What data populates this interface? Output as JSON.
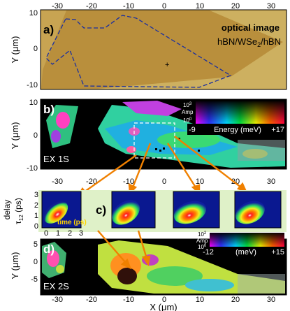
{
  "panel_a": {
    "letter": "a)",
    "title": "optical image",
    "material_prefix": "hBN/WSe",
    "material_sub": "2",
    "material_suffix": "/hBN",
    "x_ticks": [
      "-30",
      "-20",
      "-10",
      "0",
      "10",
      "20",
      "30"
    ],
    "y_ticks": [
      "10",
      "0",
      "-10"
    ],
    "y_label": "Y (μm)",
    "colors": {
      "flake": "#b98f3c",
      "substrate": "#cfb15a",
      "outline": "#1a2fa0"
    }
  },
  "panel_b": {
    "letter": "b)",
    "label": "EX 1S",
    "y_ticks": [
      "10",
      "0",
      "-10"
    ],
    "y_label": "Y (μm)",
    "amp_label": "Amp",
    "amp_high": "10",
    "amp_high_exp": "3",
    "amp_low": "10",
    "amp_low_exp": "0",
    "energy_min": "-9",
    "energy_max": "+17",
    "energy_label": "Energy (meV)"
  },
  "panel_c": {
    "letter": "c)",
    "y_label_1": "delay",
    "y_label_2": "τ",
    "y_label_sub": "12",
    "y_label_3": " (ps)",
    "x_label": "time (ps)",
    "x_ticks": [
      "0",
      "1",
      "2",
      "3"
    ],
    "y_ticks": [
      "3",
      "2",
      "1",
      "0"
    ]
  },
  "panel_d": {
    "letter": "d)",
    "label": "EX 2S",
    "y_ticks": [
      "5",
      "0",
      "-5"
    ],
    "y_label": "Y (μm)",
    "x_ticks": [
      "-30",
      "-20",
      "-10",
      "0",
      "10",
      "20",
      "30"
    ],
    "x_label": "X (μm)",
    "amp_label": "Amp",
    "amp_high": "10",
    "amp_high_exp": "2",
    "amp_low": "10",
    "amp_low_exp": "0",
    "energy_min": "-12",
    "energy_max": "+15",
    "energy_label": "(meV)"
  }
}
